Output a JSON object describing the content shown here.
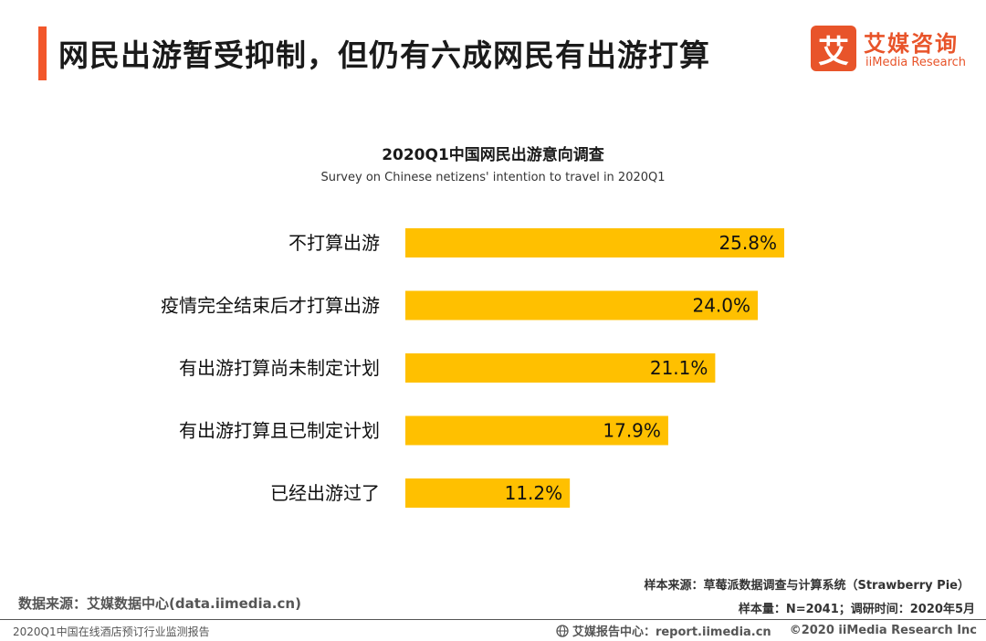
{
  "header": {
    "title": "网民出游暂受抑制，但仍有六成网民有出游打算",
    "accent_color": "#f2572b"
  },
  "logo": {
    "glyph": "艾",
    "name_cn": "艾媒咨询",
    "name_en": "iiMedia Research",
    "color": "#e8542a"
  },
  "chart_data": {
    "type": "bar",
    "orientation": "horizontal",
    "title": "2020Q1中国网民出游意向调查",
    "subtitle": "Survey on Chinese netizens' intention to travel in 2020Q1",
    "categories": [
      "不打算出游",
      "疫情完全结束后才打算出游",
      "有出游打算尚未制定计划",
      "有出游打算且已制定计划",
      "已经出游过了"
    ],
    "values": [
      25.8,
      24.0,
      21.1,
      17.9,
      11.2
    ],
    "value_labels": [
      "25.8%",
      "24.0%",
      "21.1%",
      "17.9%",
      "11.2%"
    ],
    "unit": "%",
    "xlim": [
      0,
      25.8
    ],
    "grid": false,
    "legend": "none",
    "bar_color": "#ffc000"
  },
  "footer": {
    "data_source": "数据来源：艾媒数据中心(data.iimedia.cn)",
    "sample_source": "样本来源：草莓派数据调查与计算系统（Strawberry Pie）",
    "sample_info": "样本量：N=2041；调研时间：2020年5月",
    "report_name": "2020Q1中国在线酒店预订行业监测报告",
    "report_center": "艾媒报告中心：report.iimedia.cn",
    "copyright": "©2020  iiMedia Research  Inc"
  }
}
